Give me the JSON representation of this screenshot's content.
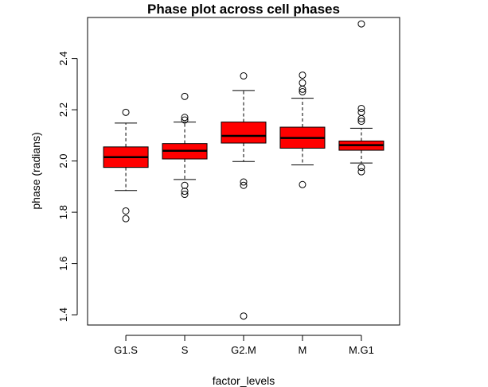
{
  "chart_data": {
    "type": "boxplot",
    "title": "Phase plot across cell phases",
    "xlabel": "factor_levels",
    "ylabel": "phase (radians)",
    "ylim": [
      1.36,
      2.56
    ],
    "yticks": [
      "1.4",
      "1.6",
      "1.8",
      "2.0",
      "2.2",
      "2.4"
    ],
    "categories": [
      "G1.S",
      "S",
      "G2.M",
      "M",
      "M.G1"
    ],
    "box_color": "#ff0000",
    "boxes": [
      {
        "category": "G1.S",
        "whisker_low": 1.885,
        "q1": 1.975,
        "median": 2.015,
        "q3": 2.055,
        "whisker_high": 2.148,
        "outliers": [
          2.19,
          1.805,
          1.775
        ]
      },
      {
        "category": "S",
        "whisker_low": 1.928,
        "q1": 2.008,
        "median": 2.04,
        "q3": 2.068,
        "whisker_high": 2.152,
        "outliers": [
          2.252,
          2.17,
          2.16,
          1.905,
          1.882,
          1.87
        ]
      },
      {
        "category": "G2.M",
        "whisker_low": 1.998,
        "q1": 2.07,
        "median": 2.098,
        "q3": 2.152,
        "whisker_high": 2.275,
        "outliers": [
          2.332,
          1.918,
          1.905,
          1.395
        ]
      },
      {
        "category": "M",
        "whisker_low": 1.985,
        "q1": 2.05,
        "median": 2.09,
        "q3": 2.132,
        "whisker_high": 2.245,
        "outliers": [
          2.335,
          2.305,
          2.28,
          2.27,
          1.908
        ]
      },
      {
        "category": "M.G1",
        "whisker_low": 1.992,
        "q1": 2.042,
        "median": 2.062,
        "q3": 2.078,
        "whisker_high": 2.128,
        "outliers": [
          2.535,
          2.205,
          2.19,
          2.165,
          2.155,
          1.975,
          1.958
        ]
      }
    ]
  }
}
